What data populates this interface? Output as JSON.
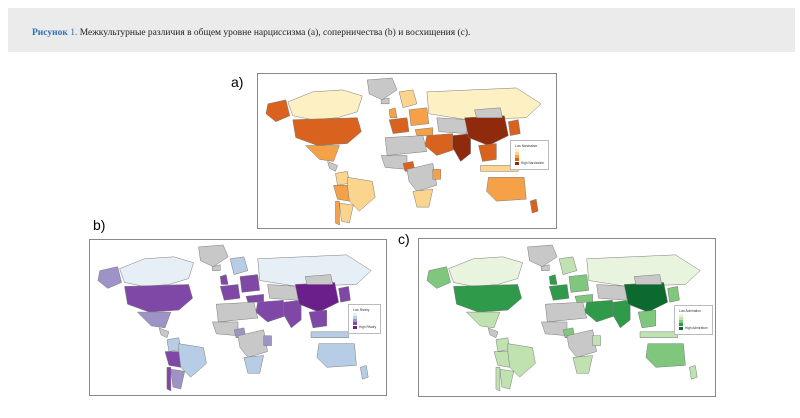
{
  "caption": {
    "label": "Рисунок",
    "number": "1.",
    "text": "Межкультурные различия в общем уровне нарциссизма (a), соперничества (b) и восхищения (c)."
  },
  "panels": [
    {
      "id": "a",
      "label": "a)",
      "legend_top": "Low Narcissism",
      "legend_bottom": "High Narcissism",
      "palette": [
        "#fdf0c2",
        "#fbd58e",
        "#f4a147",
        "#d9621f",
        "#8f2a0d"
      ],
      "no_data": "#c8c8c8"
    },
    {
      "id": "b",
      "label": "b)",
      "legend_top": "Low Rivalry",
      "legend_bottom": "High Rivalry",
      "palette": [
        "#e6eef6",
        "#b7cde5",
        "#9d93c6",
        "#8048a6",
        "#6b1f8a"
      ],
      "no_data": "#c8c8c8"
    },
    {
      "id": "c",
      "label": "c)",
      "legend_top": "Low Admiration",
      "legend_bottom": "High Admiration",
      "palette": [
        "#e8f4dd",
        "#bfe2b0",
        "#7fc77d",
        "#2f9a49",
        "#0d6a2e"
      ],
      "no_data": "#c8c8c8"
    }
  ]
}
